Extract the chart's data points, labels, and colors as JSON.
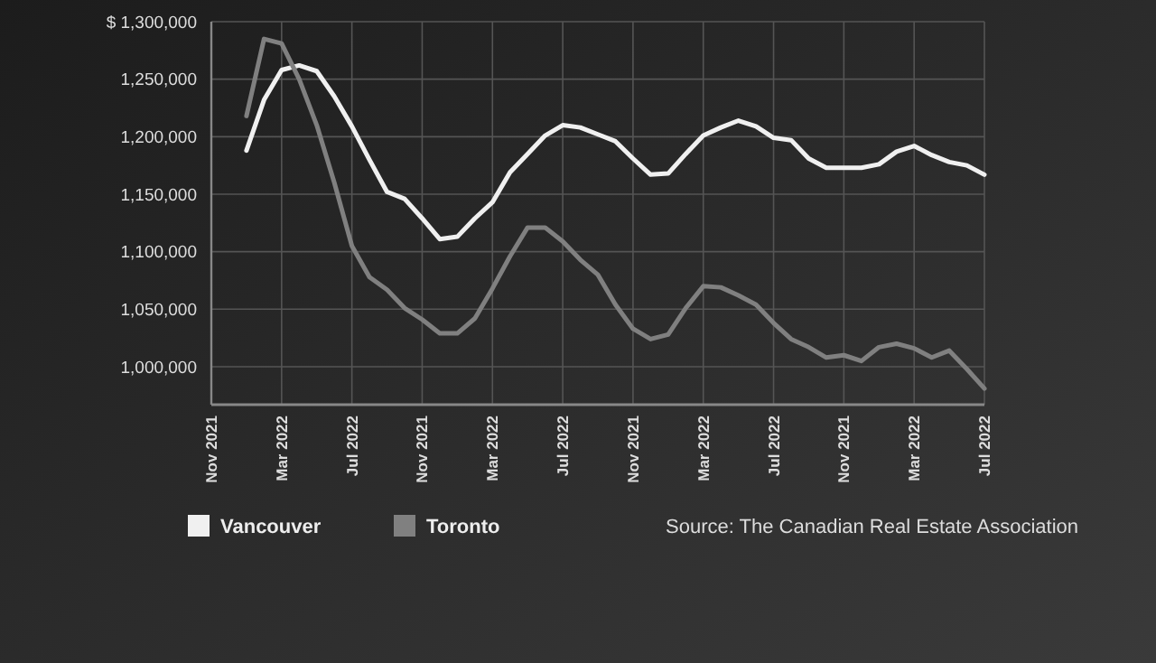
{
  "chart_data": {
    "type": "line",
    "categories": [
      "Nov 2021",
      null,
      null,
      null,
      "Mar 2022",
      null,
      null,
      null,
      "Jul 2022",
      null,
      null,
      null,
      "Nov 2021",
      null,
      null,
      null,
      "Mar 2022",
      null,
      null,
      null,
      "Jul 2022",
      null,
      null,
      null,
      "Nov 2021",
      null,
      null,
      null,
      "Mar 2022",
      null,
      null,
      null,
      "Jul 2022",
      null,
      null,
      null,
      "Nov 2021",
      null,
      null,
      null,
      "Mar 2022",
      null,
      null,
      null,
      "Jul 2022"
    ],
    "ylim": [
      967000,
      1300000
    ],
    "yticks": [
      {
        "value": 1000000,
        "label": "1,000,000"
      },
      {
        "value": 1050000,
        "label": "1,050,000"
      },
      {
        "value": 1100000,
        "label": "1,100,000"
      },
      {
        "value": 1150000,
        "label": "1,150,000"
      },
      {
        "value": 1200000,
        "label": "1,200,000"
      },
      {
        "value": 1250000,
        "label": "1,250,000"
      },
      {
        "value": 1300000,
        "label": "$ 1,300,000"
      }
    ],
    "series": [
      {
        "name": "Vancouver",
        "color": "#f0f0f0",
        "values": [
          null,
          null,
          1188000,
          1232000,
          1258000,
          1262000,
          1257000,
          1235000,
          1209000,
          1180000,
          1152000,
          1146000,
          1129000,
          1111000,
          1113000,
          1129000,
          1143000,
          1169000,
          1185000,
          1201000,
          1210000,
          1208000,
          1202000,
          1196000,
          1181000,
          1167000,
          1168000,
          1185000,
          1201000,
          1208000,
          1214000,
          1209000,
          1199000,
          1197000,
          1181000,
          1173000,
          1173000,
          1173000,
          1176000,
          1187000,
          1192000,
          1184000,
          1178000,
          1175000,
          1167000
        ]
      },
      {
        "name": "Toronto",
        "color": "#808080",
        "values": [
          null,
          null,
          1218000,
          1285000,
          1281000,
          1250000,
          1210000,
          1160000,
          1105000,
          1078000,
          1067000,
          1051000,
          1041000,
          1029000,
          1029000,
          1042000,
          1068000,
          1096000,
          1121000,
          1121000,
          1109000,
          1093000,
          1080000,
          1054000,
          1033000,
          1024000,
          1028000,
          1051000,
          1070000,
          1069000,
          1062000,
          1054000,
          1038000,
          1024000,
          1017000,
          1008000,
          1010000,
          1005000,
          1017000,
          1020000,
          1016000,
          1008000,
          1014000,
          998000,
          981000
        ]
      }
    ],
    "grid": true,
    "legend": "bottom",
    "annotations": [
      "Source: The Canadian Real Estate Association"
    ]
  }
}
